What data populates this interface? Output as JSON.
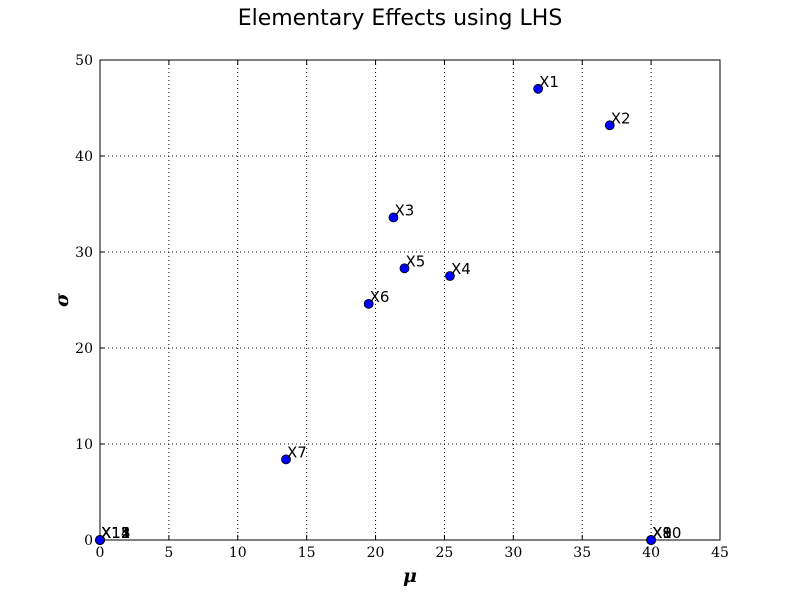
{
  "chart_data": {
    "type": "scatter",
    "title": "Elementary Effects using LHS",
    "xlabel": "μ",
    "ylabel": "σ",
    "xlim": [
      0,
      45
    ],
    "ylim": [
      0,
      50
    ],
    "xticks": [
      "0",
      "5",
      "10",
      "15",
      "20",
      "25",
      "30",
      "35",
      "40",
      "45"
    ],
    "yticks": [
      "0",
      "10",
      "20",
      "30",
      "40",
      "50"
    ],
    "grid": true,
    "marker_color": "#0000ff",
    "points": [
      {
        "label": "X1",
        "x": 31.8,
        "y": 47.0
      },
      {
        "label": "X2",
        "x": 37.0,
        "y": 43.2
      },
      {
        "label": "X3",
        "x": 21.3,
        "y": 33.6
      },
      {
        "label": "X5",
        "x": 22.1,
        "y": 28.3
      },
      {
        "label": "X4",
        "x": 25.4,
        "y": 27.5
      },
      {
        "label": "X6",
        "x": 19.5,
        "y": 24.6
      },
      {
        "label": "X7",
        "x": 13.5,
        "y": 8.4
      },
      {
        "label": "X8",
        "x": 40.0,
        "y": 0.0
      },
      {
        "label": "X9",
        "x": 40.0,
        "y": 0.0
      },
      {
        "label": "X10",
        "x": 40.0,
        "y": 0.0
      },
      {
        "label": "X11",
        "x": 0.0,
        "y": 0.0
      },
      {
        "label": "X12",
        "x": 0.0,
        "y": 0.0
      },
      {
        "label": "X13",
        "x": 0.0,
        "y": 0.0
      },
      {
        "label": "X14",
        "x": 0.0,
        "y": 0.0
      },
      {
        "label": "X15",
        "x": 0.0,
        "y": 0.0
      }
    ]
  }
}
